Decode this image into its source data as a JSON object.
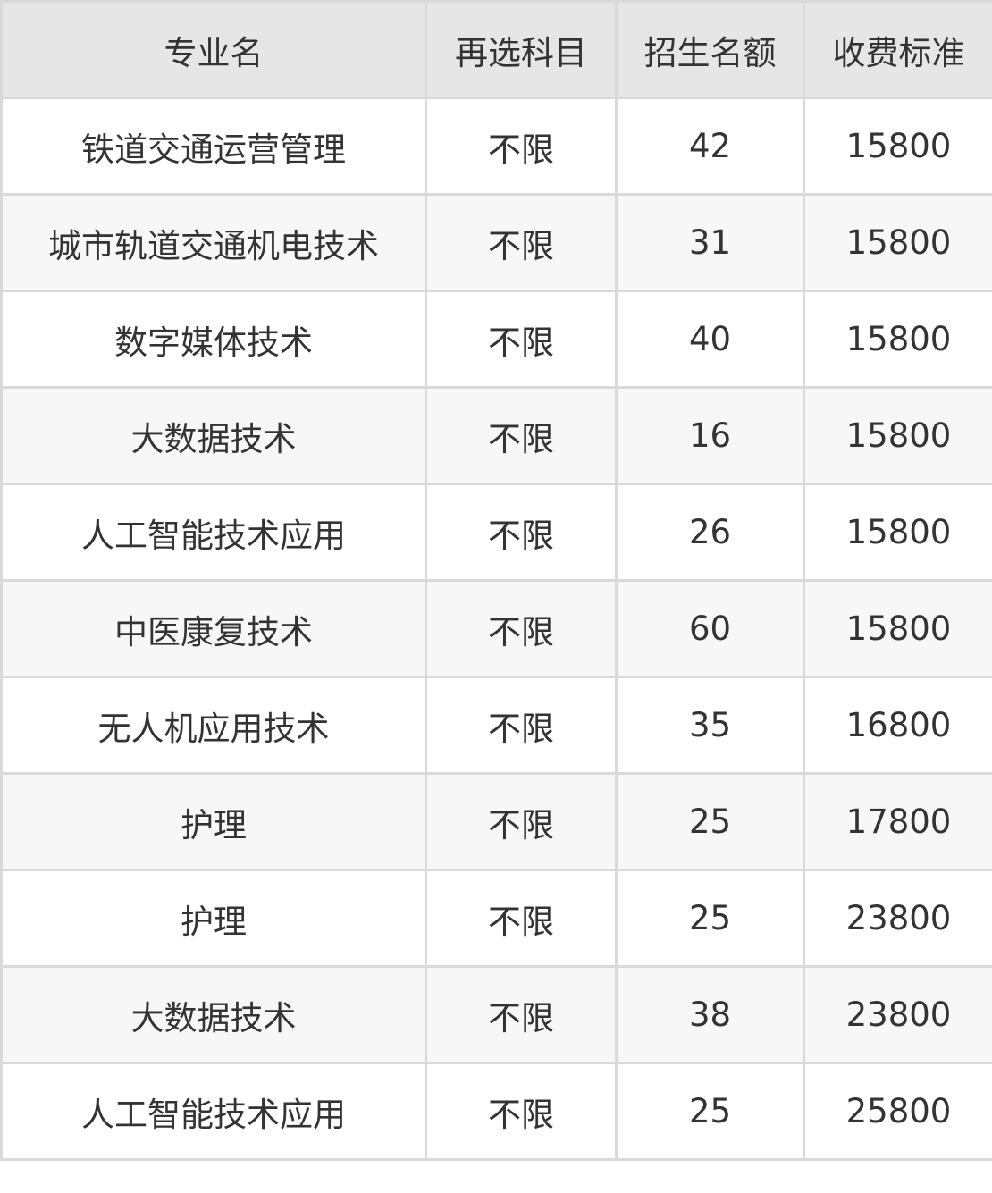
{
  "table": {
    "headers": [
      "专业名",
      "再选科目",
      "招生名额",
      "收费标准"
    ],
    "rows": [
      [
        "铁道交通运营管理",
        "不限",
        "42",
        "15800"
      ],
      [
        "城市轨道交通机电技术",
        "不限",
        "31",
        "15800"
      ],
      [
        "数字媒体技术",
        "不限",
        "40",
        "15800"
      ],
      [
        "大数据技术",
        "不限",
        "16",
        "15800"
      ],
      [
        "人工智能技术应用",
        "不限",
        "26",
        "15800"
      ],
      [
        "中医康复技术",
        "不限",
        "60",
        "15800"
      ],
      [
        "无人机应用技术",
        "不限",
        "35",
        "16800"
      ],
      [
        "护理",
        "不限",
        "25",
        "17800"
      ],
      [
        "护理",
        "不限",
        "25",
        "23800"
      ],
      [
        "大数据技术",
        "不限",
        "38",
        "23800"
      ],
      [
        "人工智能技术应用",
        "不限",
        "25",
        "25800"
      ]
    ]
  }
}
